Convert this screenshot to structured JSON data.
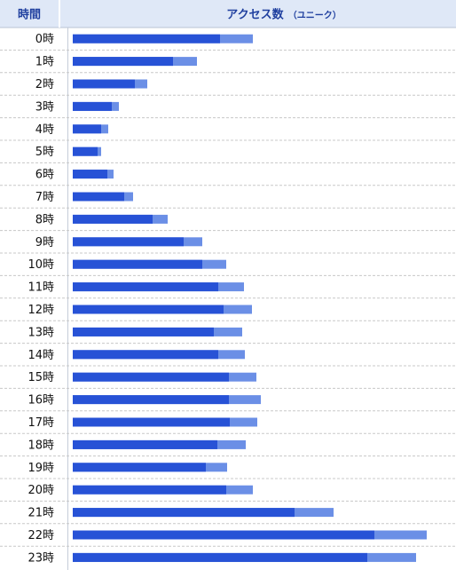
{
  "header": {
    "col_hour": "時間",
    "col_access": "アクセス数",
    "col_access_sub": "（ユニーク）"
  },
  "colors": {
    "header_bg": "#dfe8f7",
    "header_text": "#1f3f9f",
    "bar_unique": "#2752d6",
    "bar_total": "#6b8fe6",
    "grid": "#c8c8c8",
    "border": "#b9c3d6"
  },
  "chart_data": {
    "type": "bar",
    "orientation": "horizontal",
    "categories": [
      "0時",
      "1時",
      "2時",
      "3時",
      "4時",
      "5時",
      "6時",
      "7時",
      "8時",
      "9時",
      "10時",
      "11時",
      "12時",
      "13時",
      "14時",
      "15時",
      "16時",
      "17時",
      "18時",
      "19時",
      "20時",
      "21時",
      "22時",
      "23時"
    ],
    "series": [
      {
        "role": "unique",
        "values": [
          166,
          113,
          70,
          44,
          32,
          28,
          39,
          58,
          90,
          125,
          146,
          164,
          170,
          159,
          164,
          176,
          176,
          177,
          163,
          150,
          173,
          250,
          340,
          332
        ]
      },
      {
        "role": "total",
        "values": [
          203,
          140,
          84,
          52,
          40,
          32,
          46,
          68,
          107,
          146,
          173,
          193,
          202,
          191,
          194,
          207,
          212,
          208,
          195,
          174,
          203,
          294,
          399,
          387
        ]
      }
    ],
    "xlim": [
      0,
      400
    ],
    "grid": true,
    "legend": "none"
  }
}
